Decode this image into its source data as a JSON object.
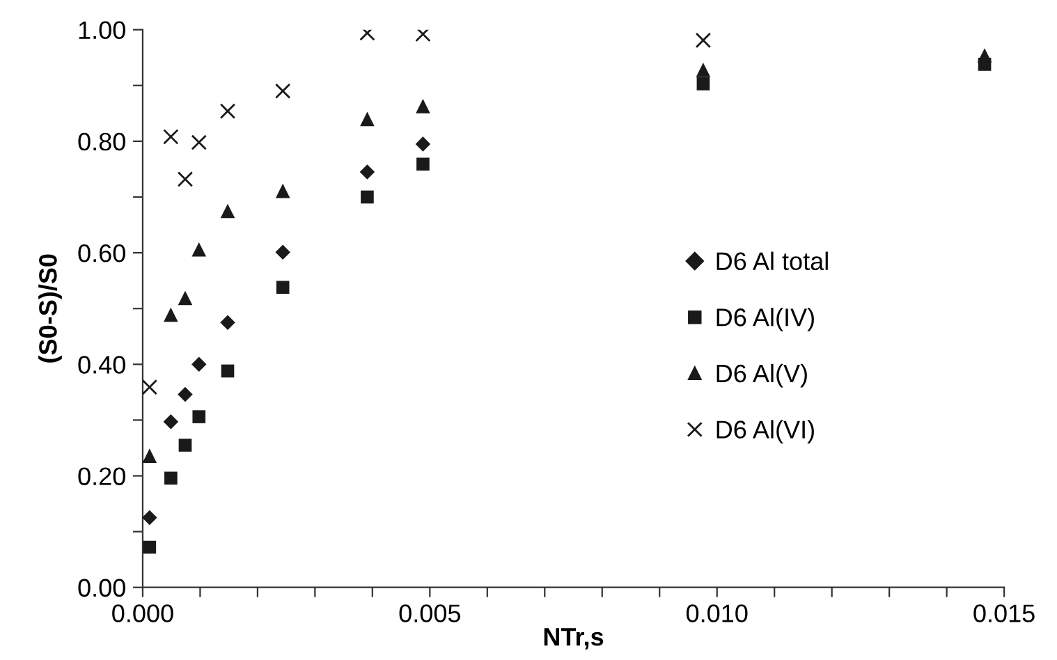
{
  "chart_data": {
    "type": "scatter",
    "xlabel": "NTr,s",
    "ylabel": "(S0-S)/S0",
    "x": [
      0.00012,
      0.00049,
      0.00074,
      0.00098,
      0.00148,
      0.00244,
      0.00391,
      0.00488,
      0.00976,
      0.01466
    ],
    "series": [
      {
        "name": "D6 Al total",
        "color": "#1a1a1a",
        "marker": "diamond",
        "values": [
          0.125,
          0.297,
          0.346,
          0.4,
          0.475,
          0.601,
          0.745,
          0.795,
          null,
          null
        ]
      },
      {
        "name": "D6 Al(IV)",
        "color": "#1a1a1a",
        "marker": "square",
        "values": [
          0.072,
          0.196,
          0.255,
          0.306,
          0.388,
          0.538,
          0.7,
          0.759,
          0.903,
          0.938
        ]
      },
      {
        "name": "D6 Al(V)",
        "color": "#1a1a1a",
        "marker": "triangle",
        "values": [
          0.236,
          0.489,
          0.519,
          0.606,
          0.675,
          0.711,
          0.84,
          0.863,
          0.928,
          0.954
        ]
      },
      {
        "name": "D6 Al(VI)",
        "color": "#1a1a1a",
        "marker": "cross",
        "values": [
          0.359,
          0.808,
          0.732,
          0.798,
          0.854,
          0.89,
          0.994,
          0.992,
          0.981,
          null
        ]
      }
    ],
    "xlim": [
      0,
      0.015
    ],
    "xticks": [
      {
        "value": 0,
        "label": "0.000"
      },
      {
        "value": 0.001,
        "label": null
      },
      {
        "value": 0.002,
        "label": null
      },
      {
        "value": 0.003,
        "label": null
      },
      {
        "value": 0.004,
        "label": null
      },
      {
        "value": 0.005,
        "label": "0.005"
      },
      {
        "value": 0.006,
        "label": null
      },
      {
        "value": 0.007,
        "label": null
      },
      {
        "value": 0.008,
        "label": null
      },
      {
        "value": 0.009,
        "label": null
      },
      {
        "value": 0.01,
        "label": "0.010"
      },
      {
        "value": 0.011,
        "label": null
      },
      {
        "value": 0.012,
        "label": null
      },
      {
        "value": 0.013,
        "label": null
      },
      {
        "value": 0.014,
        "label": null
      },
      {
        "value": 0.015,
        "label": "0.015"
      }
    ],
    "ylim": [
      0,
      1
    ],
    "yticks": [
      {
        "value": 0,
        "label": "0.00"
      },
      {
        "value": 0.1,
        "label": null
      },
      {
        "value": 0.2,
        "label": "0.20"
      },
      {
        "value": 0.3,
        "label": null
      },
      {
        "value": 0.4,
        "label": "0.40"
      },
      {
        "value": 0.5,
        "label": null
      },
      {
        "value": 0.6,
        "label": "0.60"
      },
      {
        "value": 0.7,
        "label": null
      },
      {
        "value": 0.8,
        "label": "0.80"
      },
      {
        "value": 0.9,
        "label": null
      },
      {
        "value": 1.0,
        "label": "1.00"
      }
    ],
    "grid": false,
    "legend": "right"
  }
}
